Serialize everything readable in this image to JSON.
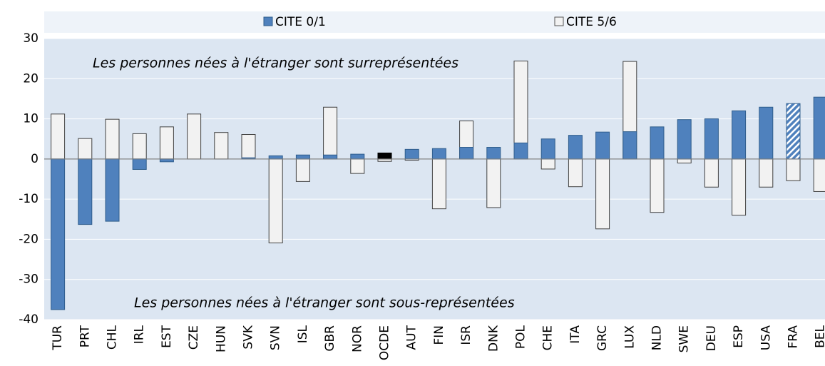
{
  "chart_data": {
    "type": "bar",
    "categories": [
      "TUR",
      "PRT",
      "CHL",
      "IRL",
      "EST",
      "CZE",
      "HUN",
      "SVK",
      "SVN",
      "ISL",
      "GBR",
      "NOR",
      "OCDE",
      "AUT",
      "FIN",
      "ISR",
      "DNK",
      "POL",
      "CHE",
      "ITA",
      "GRC",
      "LUX",
      "NLD",
      "SWE",
      "DEU",
      "ESP",
      "USA",
      "FRA",
      "BEL"
    ],
    "series": [
      {
        "name": "CITE 5/6",
        "color": "#f2f2f2",
        "values": [
          11.2,
          5.1,
          9.9,
          6.3,
          8.0,
          11.2,
          6.6,
          6.1,
          -20.9,
          -5.6,
          12.9,
          -3.6,
          -0.6,
          -0.3,
          -12.4,
          9.5,
          -12.1,
          24.4,
          -2.5,
          -6.9,
          -17.4,
          24.3,
          -13.3,
          -1.0,
          -7.0,
          -14.0,
          -7.0,
          -5.4,
          -8.1
        ]
      },
      {
        "name": "CITE 0/1",
        "color": "#4f81bd",
        "special": {
          "OCDE": "#000000",
          "FRA": "hatch"
        },
        "values": [
          -37.5,
          -16.3,
          -15.5,
          -2.6,
          -0.7,
          0,
          0,
          0.3,
          0.8,
          1.0,
          1.0,
          1.2,
          1.5,
          2.4,
          2.6,
          2.9,
          2.9,
          4.0,
          5.0,
          5.9,
          6.7,
          6.8,
          8.0,
          9.8,
          10.0,
          12.0,
          12.9,
          13.8,
          15.4
        ]
      }
    ],
    "annotations": [
      "Les personnes nées à l'étranger sont surreprésentées",
      "Les personnes nées à l'étranger sont sous-représentées"
    ],
    "ylim": [
      -40,
      30
    ],
    "yticks": [
      -40,
      -30,
      -20,
      -10,
      0,
      10,
      20,
      30
    ],
    "grid": true
  }
}
